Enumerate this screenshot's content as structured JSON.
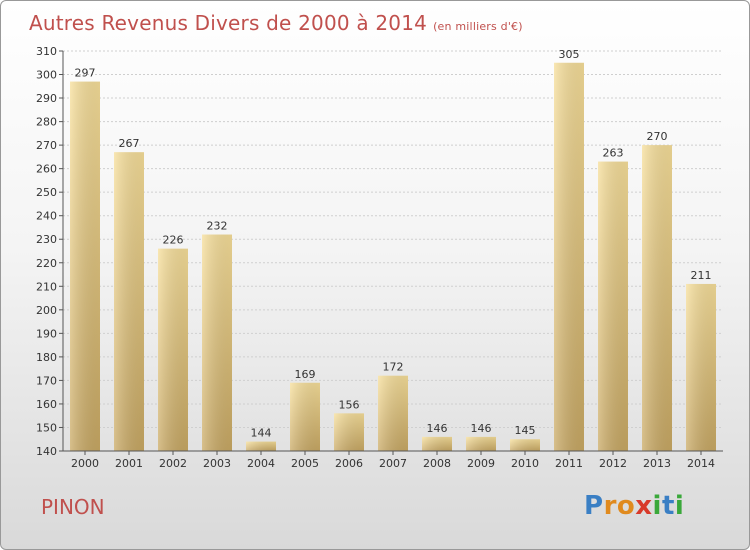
{
  "chart_data": {
    "type": "bar",
    "title": "Autres Revenus Divers de 2000 à 2014",
    "subtitle": "(en milliers d'€)",
    "categories": [
      "2000",
      "2001",
      "2002",
      "2003",
      "2004",
      "2005",
      "2006",
      "2007",
      "2008",
      "2009",
      "2010",
      "2011",
      "2012",
      "2013",
      "2014"
    ],
    "values": [
      297,
      267,
      226,
      232,
      144,
      169,
      156,
      172,
      146,
      146,
      145,
      305,
      263,
      270,
      211
    ],
    "ylim": [
      140,
      310
    ],
    "yticks": [
      140,
      150,
      160,
      170,
      180,
      190,
      200,
      210,
      220,
      230,
      240,
      250,
      260,
      270,
      280,
      290,
      300,
      310
    ],
    "grid": true,
    "colors": {
      "title": "#c0504d",
      "bar_light": "#f7df9a",
      "bar_dark": "#c9a964"
    }
  },
  "commune": "PINON",
  "logo": {
    "text": "Proxiti",
    "letters": [
      "P",
      "r",
      "o",
      "x",
      "i",
      "t",
      "i"
    ],
    "colors": [
      "#3a7fc4",
      "#e08a1e",
      "#e08a1e",
      "#d83a2a",
      "#3aa83a",
      "#3a7fc4",
      "#3aa83a"
    ]
  }
}
